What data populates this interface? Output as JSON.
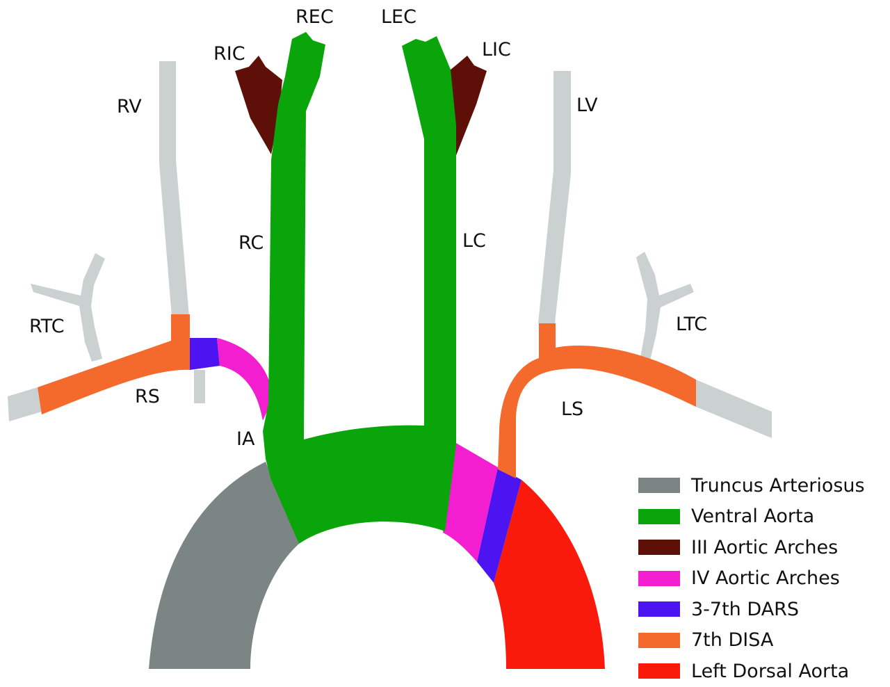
{
  "labels": {
    "rec": "REC",
    "lec": "LEC",
    "ric": "RIC",
    "lic": "LIC",
    "rv": "RV",
    "lv": "LV",
    "rc": "RC",
    "lc": "LC",
    "rtc": "RTC",
    "ltc": "LTC",
    "rs": "RS",
    "ls": "LS",
    "ia": "IA"
  },
  "colors": {
    "truncus": "#7a8584",
    "ventral": "#0aa50a",
    "third_arch": "#5e0f08",
    "fourth_arch": "#f21ecf",
    "dars": "#4b14f0",
    "disa": "#f46a2c",
    "left_dorsal": "#fa1a0c",
    "vessel": "#cbd1d1"
  },
  "legend": [
    {
      "label": "Truncus Arteriosus",
      "color": "#7a8584"
    },
    {
      "label": "Ventral Aorta",
      "color": "#0aa50a"
    },
    {
      "label": "III Aortic Arches",
      "color": "#5e0f08"
    },
    {
      "label": "IV Aortic Arches",
      "color": "#f21ecf"
    },
    {
      "label": "3-7th DARS",
      "color": "#4b14f0"
    },
    {
      "label": "7th DISA",
      "color": "#f46a2c"
    },
    {
      "label": "Left  Dorsal Aorta",
      "color": "#fa1a0c"
    }
  ]
}
